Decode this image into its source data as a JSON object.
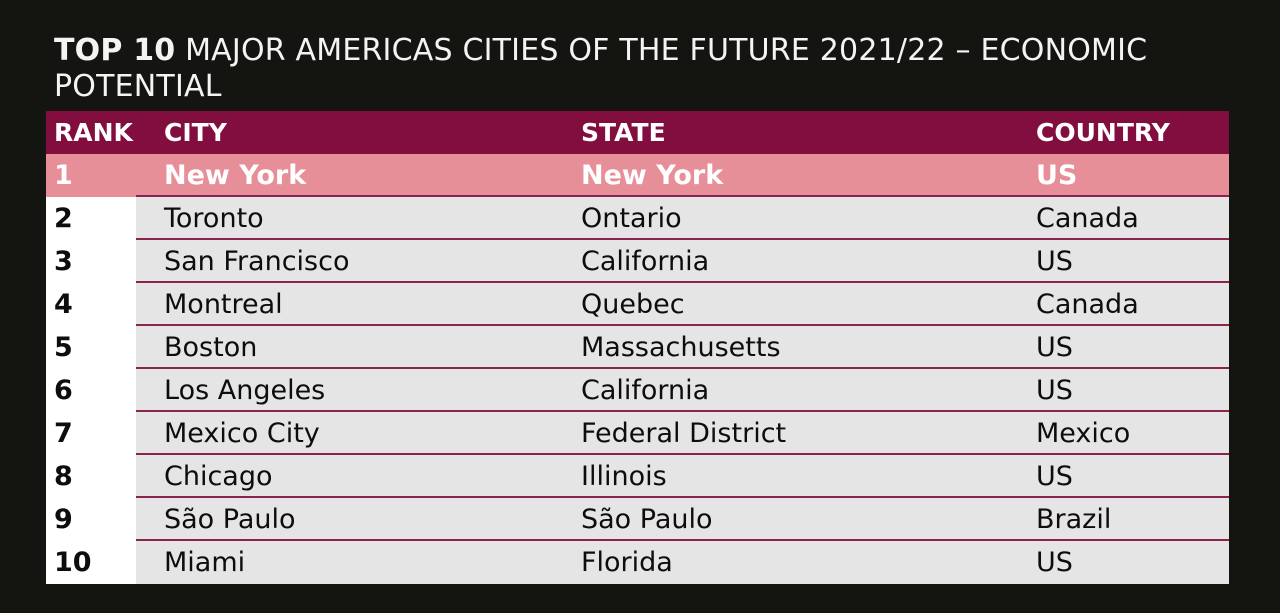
{
  "title": {
    "bold": "TOP 10",
    "rest": " MAJOR AMERICAS CITIES OF THE FUTURE 2021/22 – ECONOMIC POTENTIAL"
  },
  "colors": {
    "header": "#820e3f",
    "highlight": "#e78f99",
    "divider": "#8a2350",
    "background": "#141411"
  },
  "table": {
    "headers": {
      "rank": "RANK",
      "city": "CITY",
      "state": "STATE",
      "country": "COUNTRY"
    },
    "rows": [
      {
        "rank": "1",
        "city": "New York",
        "state": "New York",
        "country": "US"
      },
      {
        "rank": "2",
        "city": "Toronto",
        "state": "Ontario",
        "country": "Canada"
      },
      {
        "rank": "3",
        "city": "San Francisco",
        "state": "California",
        "country": "US"
      },
      {
        "rank": "4",
        "city": "Montreal",
        "state": "Quebec",
        "country": "Canada"
      },
      {
        "rank": "5",
        "city": "Boston",
        "state": "Massachusetts",
        "country": "US"
      },
      {
        "rank": "6",
        "city": "Los Angeles",
        "state": "California",
        "country": "US"
      },
      {
        "rank": "7",
        "city": "Mexico City",
        "state": "Federal District",
        "country": "Mexico"
      },
      {
        "rank": "8",
        "city": "Chicago",
        "state": "Illinois",
        "country": "US"
      },
      {
        "rank": "9",
        "city": "São Paulo",
        "state": "São Paulo",
        "country": "Brazil"
      },
      {
        "rank": "10",
        "city": "Miami",
        "state": "Florida",
        "country": "US"
      }
    ]
  }
}
